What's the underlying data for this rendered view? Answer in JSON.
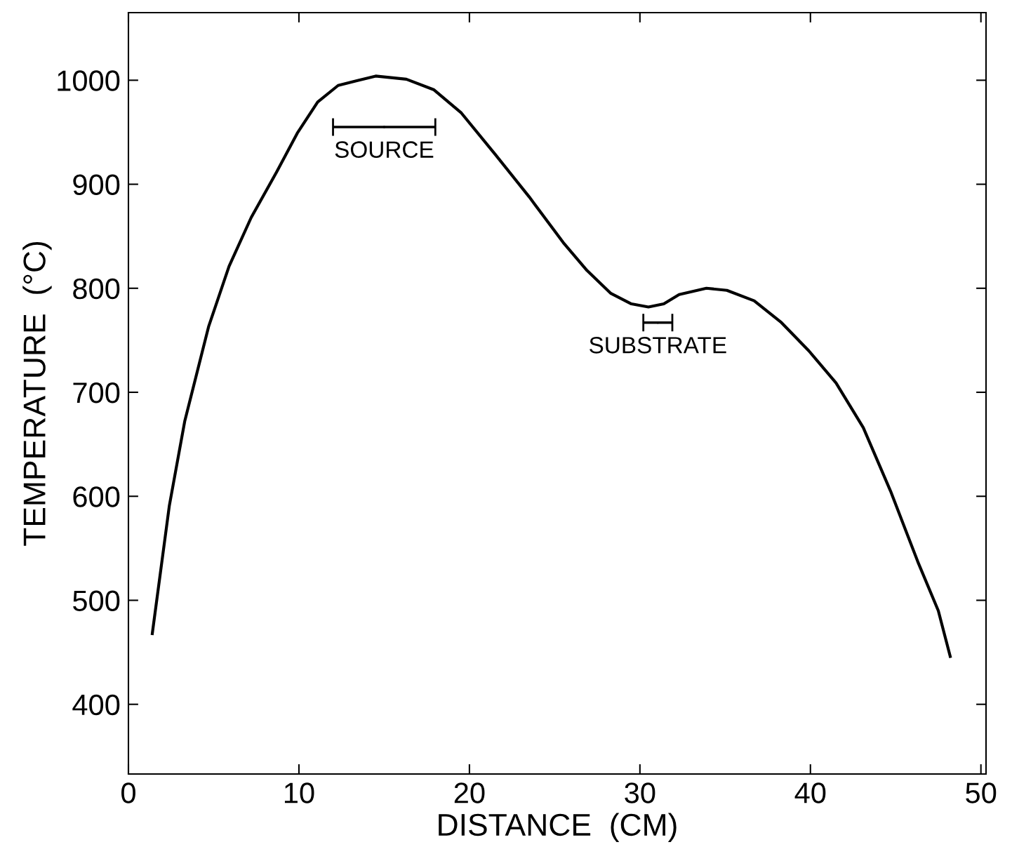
{
  "chart_data": {
    "type": "line",
    "xlabel": "DISTANCE  (CM)",
    "ylabel": "TEMPERATURE  (°C)",
    "x": [
      1.4,
      2.4,
      3.3,
      4.7,
      5.9,
      7.2,
      8.7,
      9.9,
      11.1,
      12.3,
      14.5,
      16.3,
      17.9,
      19.5,
      21.5,
      23.5,
      25.5,
      26.9,
      28.3,
      29.5,
      30.5,
      31.4,
      32.3,
      33.9,
      35.1,
      36.7,
      38.3,
      39.9,
      41.5,
      43.1,
      44.7,
      46.3,
      47.5,
      48.2
    ],
    "series": [
      {
        "color": "#000000",
        "values": [
          468,
          591,
          672,
          763,
          821,
          868,
          912,
          949,
          979,
          995,
          1004,
          1001,
          991,
          969,
          929,
          888,
          844,
          817,
          795,
          785,
          782,
          785,
          794,
          800,
          798,
          788,
          767,
          740,
          709,
          666,
          605,
          537,
          490,
          446
        ]
      },
      {
        "type": "scatter",
        "name": "SOURCE",
        "color": "#000000",
        "marker": "none",
        "x": [
          15
        ],
        "values": [
          955
        ],
        "xerrors": [
          3
        ]
      },
      {
        "type": "scatter",
        "name": "SUBSTRATE",
        "color": "#000000",
        "marker": "none",
        "x": [
          31.05
        ],
        "values": [
          767
        ],
        "xerrors": [
          0.85
        ]
      }
    ],
    "xlim": [
      0,
      50.3
    ],
    "xticks": [
      0,
      10,
      20,
      30,
      40,
      50
    ],
    "ylim": [
      333,
      1065
    ],
    "yticks": [
      400,
      500,
      600,
      700,
      800,
      900,
      1000
    ],
    "grid": false,
    "legend": false,
    "marker": "none",
    "line_style": "solid"
  }
}
